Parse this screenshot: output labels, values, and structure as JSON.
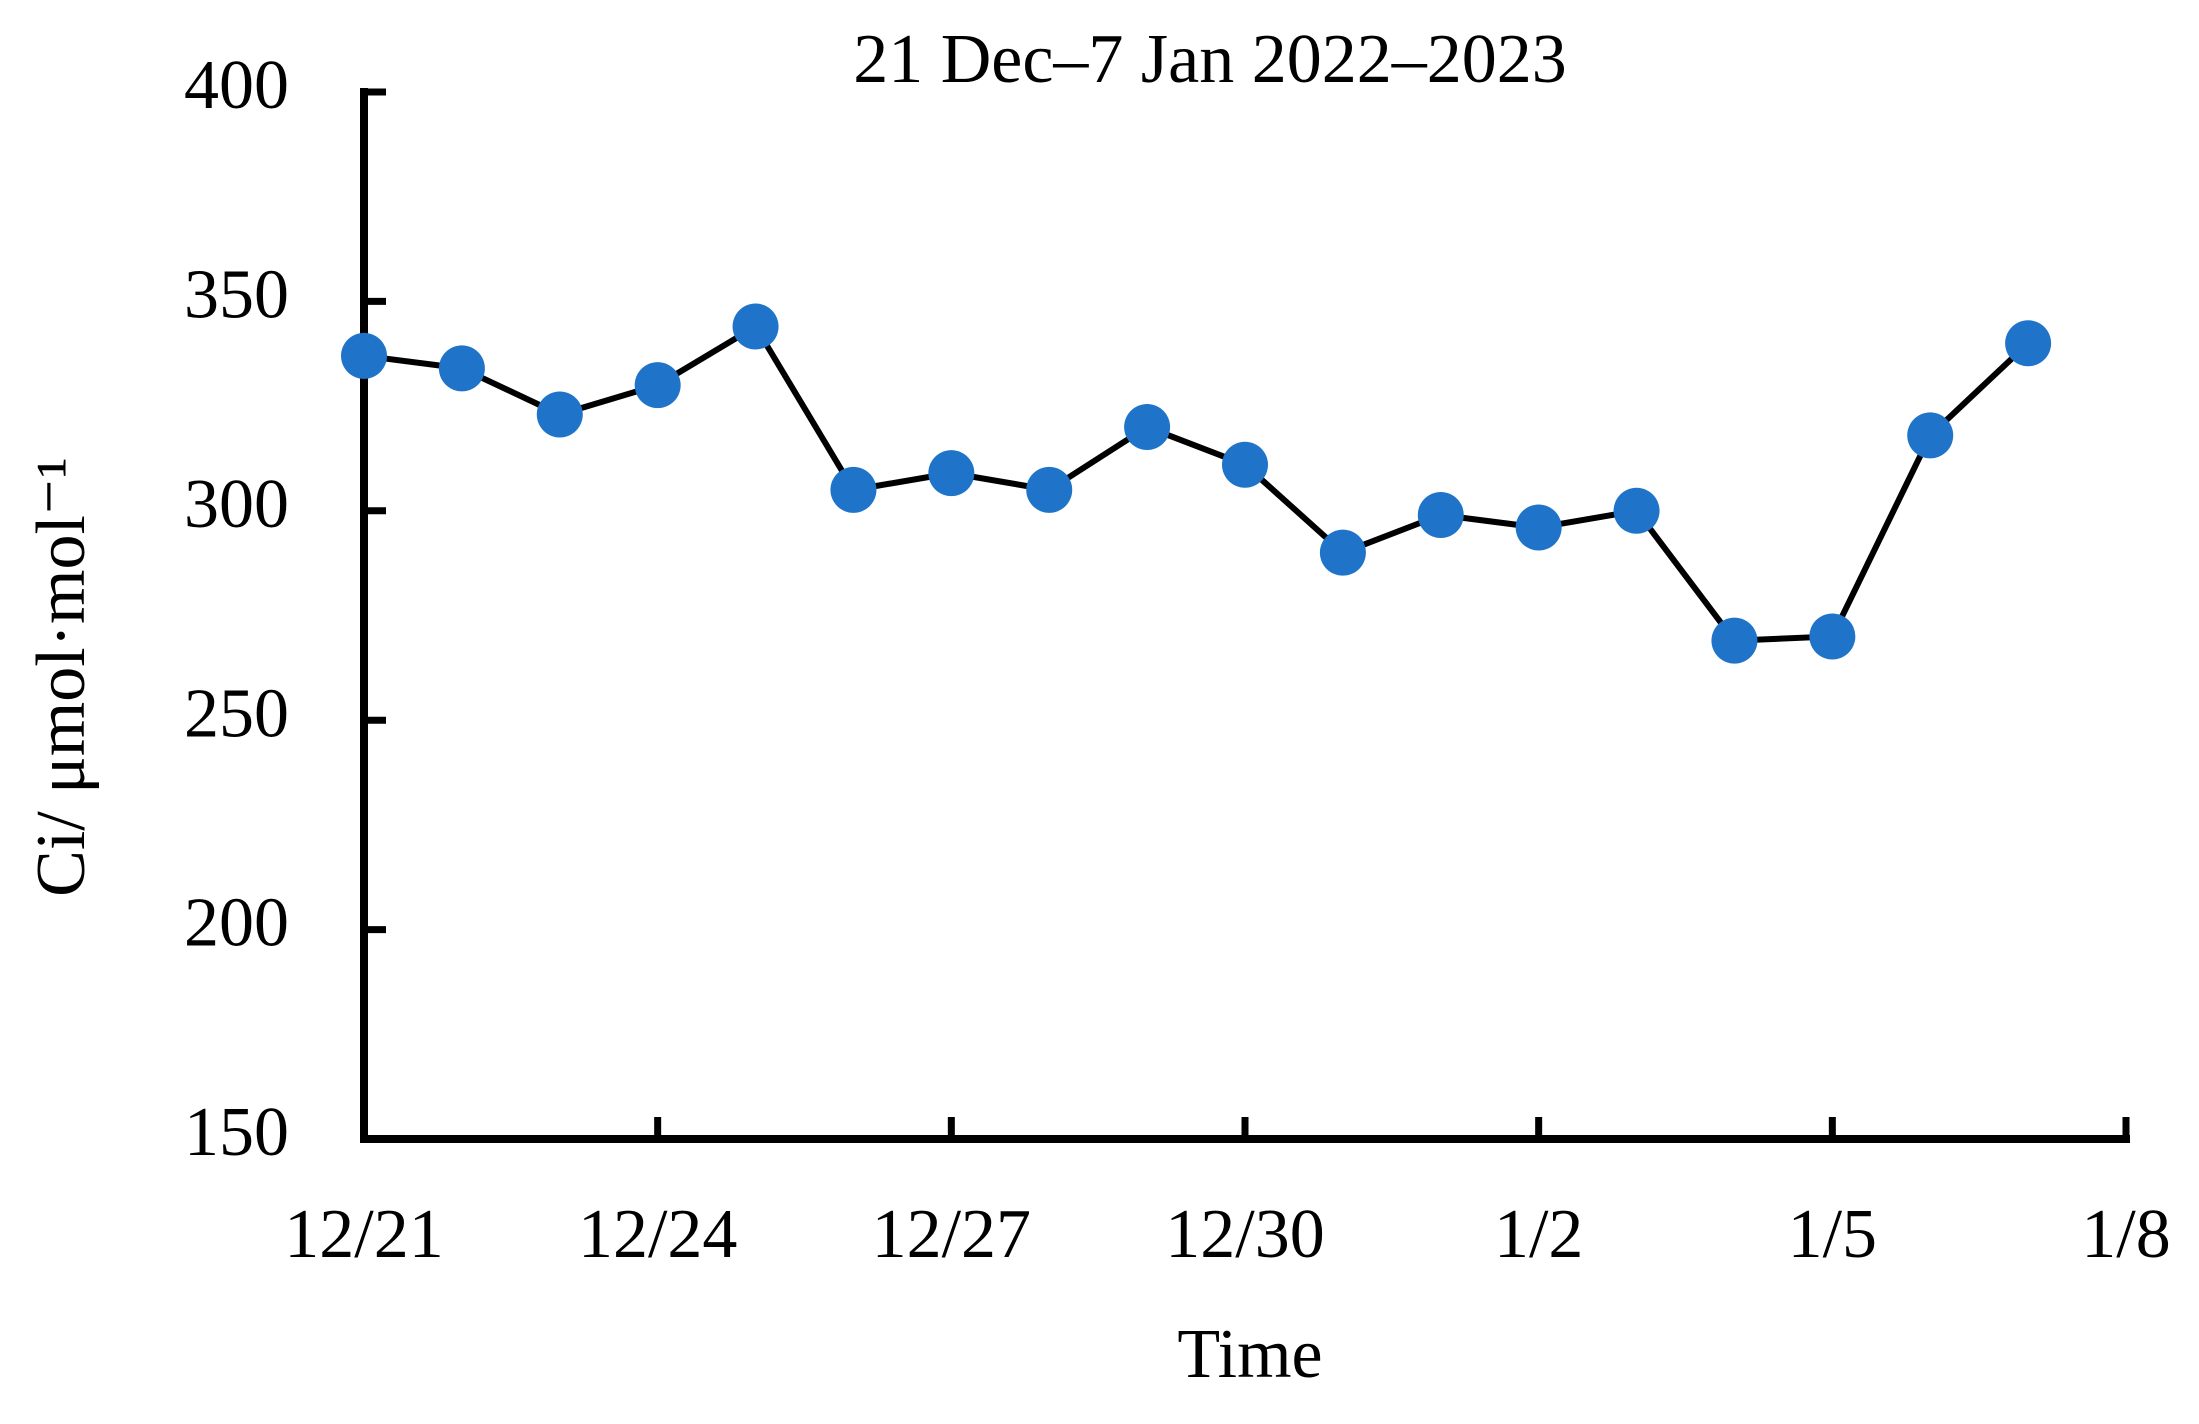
{
  "chart_data": {
    "type": "line",
    "title": "21 Dec–7 Jan 2022–2023",
    "x_label": "Time",
    "y_label": "Ci/ μmol·mol⁻¹",
    "x": [
      "12/21",
      "12/22",
      "12/23",
      "12/24",
      "12/25",
      "12/26",
      "12/27",
      "12/28",
      "12/29",
      "12/30",
      "12/31",
      "1/1",
      "1/2",
      "1/3",
      "1/4",
      "1/5",
      "1/6",
      "1/7"
    ],
    "series": [
      {
        "color": "#1f74c9",
        "line_color": "#000000",
        "values": [
          337,
          334,
          323,
          330,
          344,
          305,
          309,
          305,
          320,
          311,
          290,
          299,
          296,
          300,
          269,
          270,
          318,
          340
        ]
      }
    ],
    "xlim": [
      "12/21",
      "1/8"
    ],
    "xticks": [
      "12/21",
      "12/24",
      "12/27",
      "12/30",
      "1/2",
      "1/5",
      "1/8"
    ],
    "ylim": [
      150,
      400
    ],
    "yticks": [
      150,
      200,
      250,
      300,
      350,
      400
    ],
    "grid": false
  }
}
